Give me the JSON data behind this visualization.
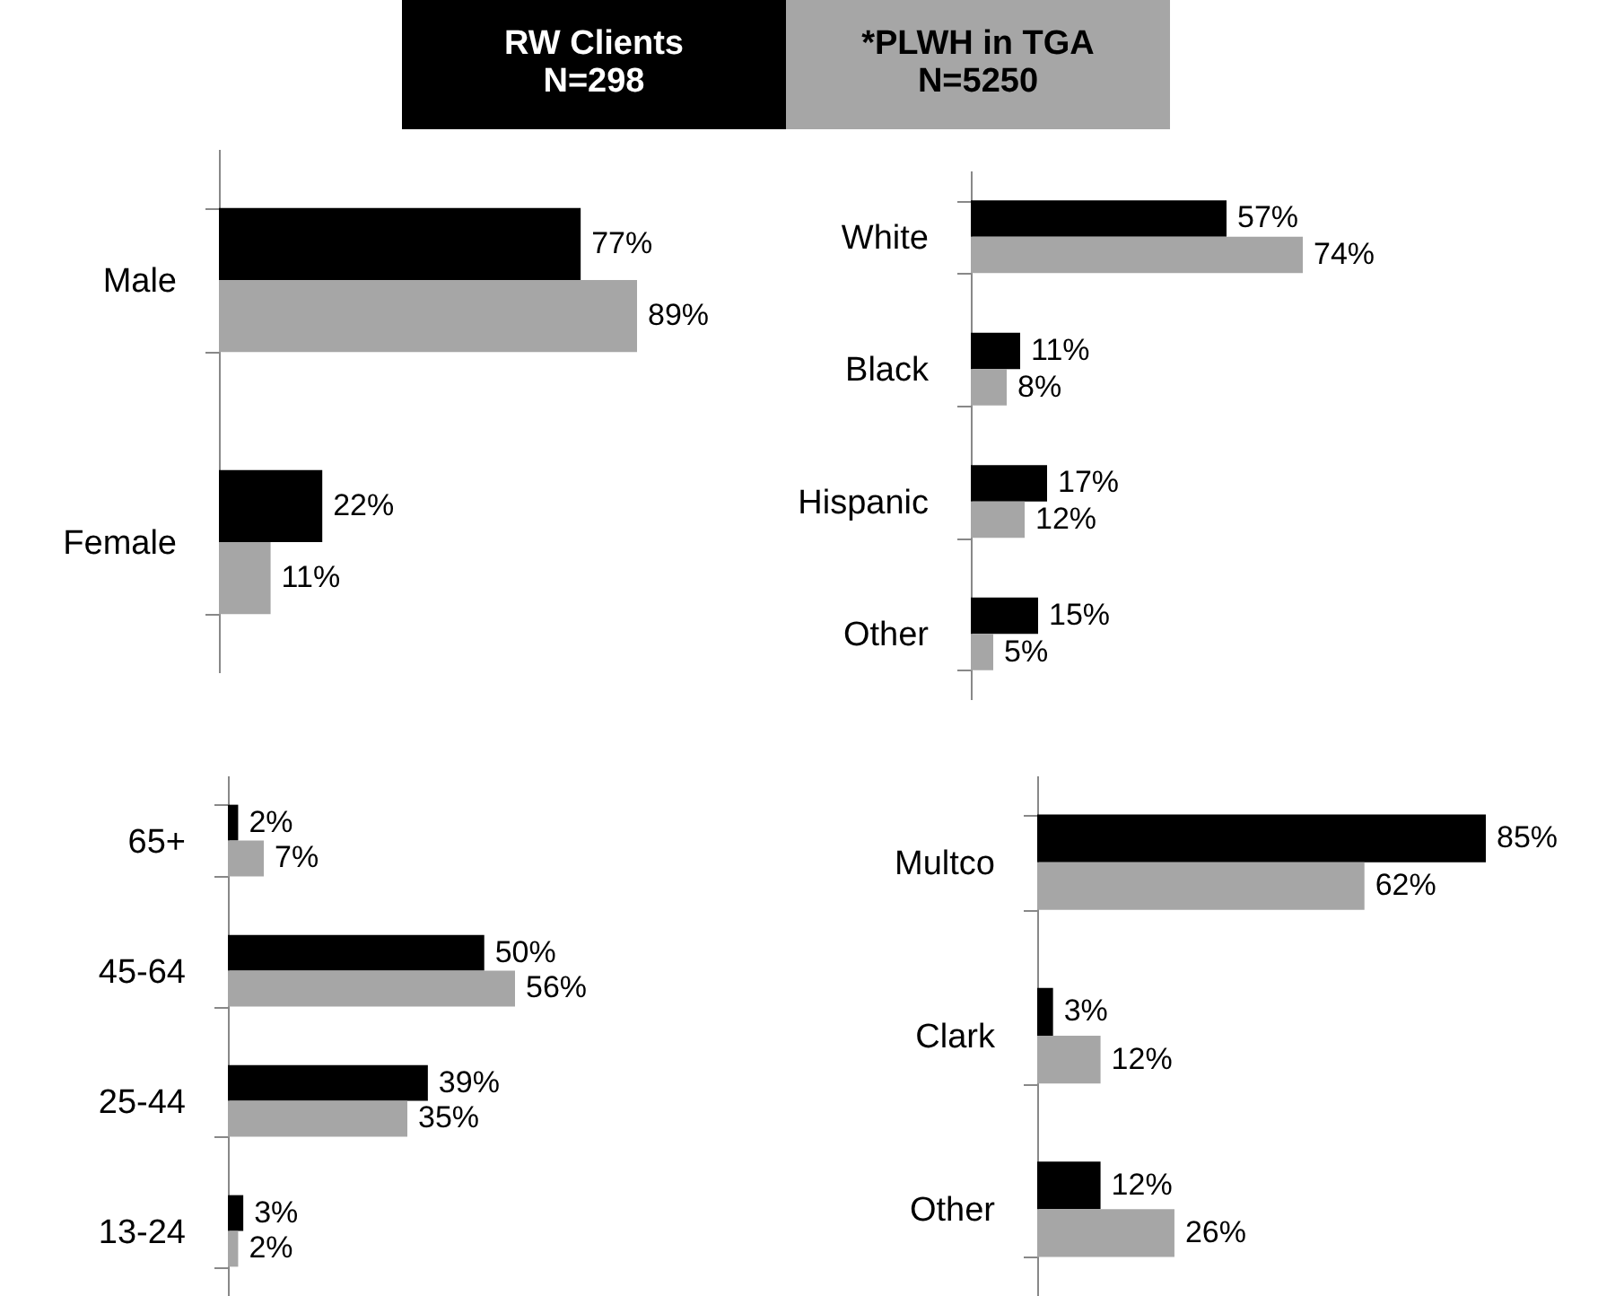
{
  "chart_data": [
    {
      "type": "bar",
      "orientation": "horizontal",
      "categories": [
        "Male",
        "Female"
      ],
      "legend": "top",
      "tick_labels": "y",
      "series": [
        {
          "name": "RW Clients\nN=298",
          "color": "#000000",
          "values": [
            77,
            22
          ],
          "value_labels": [
            "77%",
            "22%"
          ]
        },
        {
          "name": "*PLWH in TGA\nN=5250",
          "color": "#a6a6a6",
          "values": [
            89,
            11
          ],
          "value_labels": [
            "89%",
            "11%"
          ]
        }
      ]
    },
    {
      "type": "bar",
      "orientation": "horizontal",
      "categories": [
        "White",
        "Black",
        "Hispanic",
        "Other"
      ],
      "tick_labels": "y",
      "series": [
        {
          "color": "#000000",
          "values": [
            57,
            11,
            17,
            15
          ],
          "value_labels": [
            "57%",
            "11%",
            "17%",
            "15%"
          ]
        },
        {
          "color": "#a6a6a6",
          "values": [
            74,
            8,
            12,
            5
          ],
          "value_labels": [
            "74%",
            "8%",
            "12%",
            "5%"
          ]
        }
      ]
    },
    {
      "type": "bar",
      "orientation": "horizontal",
      "categories": [
        "65+",
        "45-64",
        "25-44",
        "13-24"
      ],
      "tick_labels": "y",
      "series": [
        {
          "color": "#000000",
          "values": [
            2,
            50,
            39,
            3
          ],
          "value_labels": [
            "2%",
            "50%",
            "39%",
            "3%"
          ]
        },
        {
          "color": "#a6a6a6",
          "values": [
            7,
            56,
            35,
            2
          ],
          "value_labels": [
            "7%",
            "56%",
            "35%",
            "2%"
          ]
        }
      ]
    },
    {
      "type": "bar",
      "orientation": "horizontal",
      "categories": [
        "Multco",
        "Clark",
        "Other"
      ],
      "tick_labels": "y",
      "series": [
        {
          "color": "#000000",
          "values": [
            85,
            3,
            12
          ],
          "value_labels": [
            "85%",
            "3%",
            "12%"
          ]
        },
        {
          "color": "#a6a6a6",
          "values": [
            62,
            12,
            26
          ],
          "value_labels": [
            "62%",
            "12%",
            "26%"
          ]
        }
      ]
    }
  ]
}
